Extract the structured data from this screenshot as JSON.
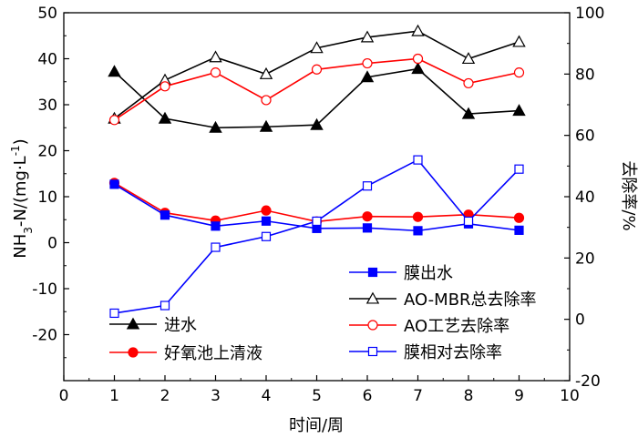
{
  "chart_data": {
    "type": "line",
    "xlabel": "时间/周",
    "ylabel_left": "NH3-N/(mg·L-1)",
    "ylabel_left_parts": {
      "base": "NH",
      "sub1": "3",
      "mid": "-N/(mg·L",
      "sup": "-1",
      "end": ")"
    },
    "ylabel_right": "去除率/%",
    "xlim": [
      0,
      10
    ],
    "ylim_left": [
      -30,
      50
    ],
    "ylim_right": [
      -20,
      100
    ],
    "x_ticks": [
      "0",
      "1",
      "2",
      "3",
      "4",
      "5",
      "6",
      "7",
      "8",
      "9",
      "10"
    ],
    "y_left_ticks": [
      "-20",
      "-10",
      "0",
      "10",
      "20",
      "30",
      "40",
      "50"
    ],
    "y_right_ticks": [
      "-20",
      "0",
      "20",
      "40",
      "60",
      "80",
      "100"
    ],
    "x": [
      1,
      2,
      3,
      4,
      5,
      6,
      7,
      8,
      9
    ],
    "grid": false,
    "series": [
      {
        "name": "进水",
        "axis": "left",
        "marker": "triangle-filled",
        "color": "#000000",
        "values": [
          37.2,
          27.0,
          25.0,
          25.2,
          25.6,
          36.0,
          37.8,
          28.0,
          28.7
        ]
      },
      {
        "name": "好氧池上清液",
        "axis": "left",
        "marker": "circle-filled",
        "color": "#ff0000",
        "values": [
          13.0,
          6.5,
          4.8,
          7.0,
          4.6,
          5.7,
          5.6,
          6.1,
          5.4
        ]
      },
      {
        "name": "膜出水",
        "axis": "left",
        "marker": "square-filled",
        "color": "#0000ff",
        "values": [
          12.7,
          6.0,
          3.6,
          4.7,
          3.1,
          3.2,
          2.6,
          4.1,
          2.7
        ]
      },
      {
        "name": "AO-MBR总去除率",
        "axis": "right",
        "marker": "triangle-open",
        "color": "#000000",
        "values": [
          65.5,
          78.0,
          85.5,
          80.0,
          88.5,
          92.0,
          94.0,
          85.0,
          90.5
        ]
      },
      {
        "name": "AO工艺去除率",
        "axis": "right",
        "marker": "circle-open",
        "color": "#ff0000",
        "values": [
          65.0,
          76.0,
          80.5,
          71.5,
          81.5,
          83.5,
          85.0,
          77.0,
          80.5
        ]
      },
      {
        "name": "膜相对去除率",
        "axis": "right",
        "marker": "square-open",
        "color": "#0000ff",
        "values": [
          2.0,
          4.5,
          23.5,
          27.0,
          32.0,
          43.5,
          52.0,
          32.0,
          49.0
        ]
      }
    ],
    "legends": [
      {
        "items": [
          0,
          1
        ],
        "placement": "bottom-left"
      },
      {
        "items": [
          2,
          3,
          4,
          5
        ],
        "placement": "bottom-right"
      }
    ]
  }
}
